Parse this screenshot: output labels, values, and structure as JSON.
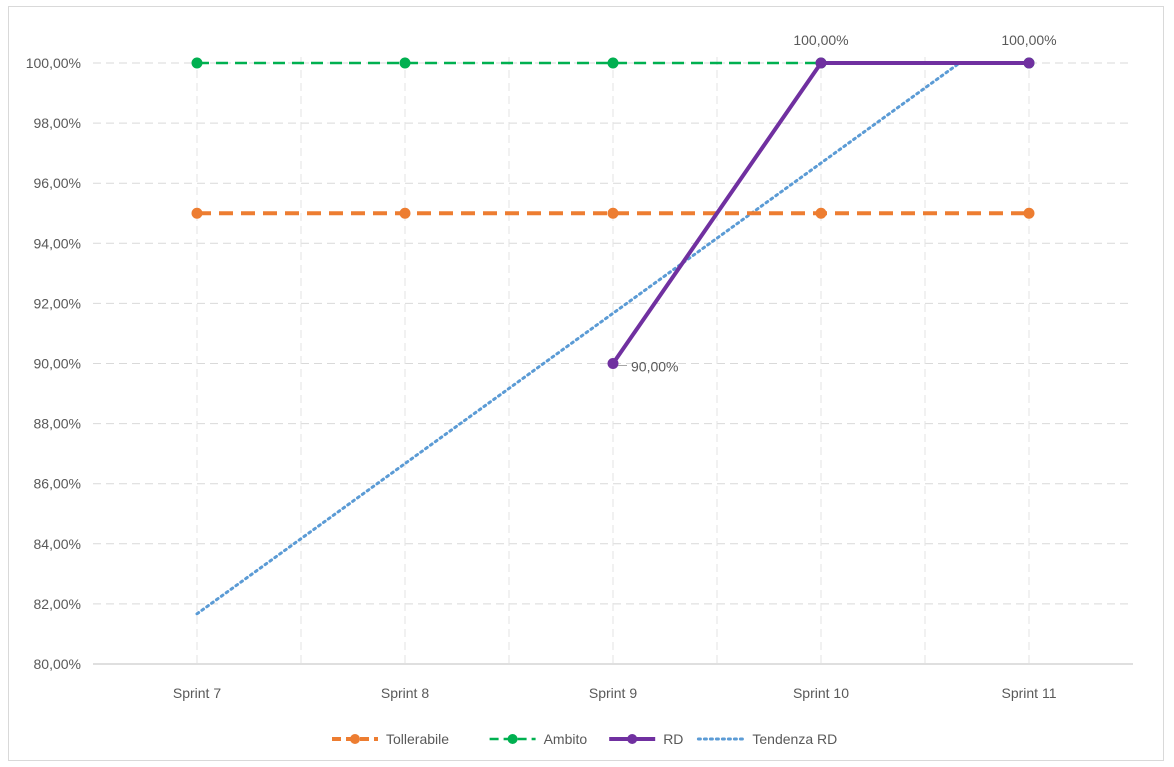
{
  "chart_data": {
    "type": "line",
    "categories": [
      "Sprint 7",
      "Sprint 8",
      "Sprint 9",
      "Sprint 10",
      "Sprint 11"
    ],
    "series": [
      {
        "name": "Tollerabile",
        "values": [
          95,
          95,
          95,
          95,
          95
        ],
        "color": "#ed7d31",
        "style": "dashed-thick",
        "marker": "circle"
      },
      {
        "name": "Ambito",
        "values": [
          100,
          100,
          100,
          100,
          100
        ],
        "color": "#00b050",
        "style": "dashed",
        "marker": "circle"
      },
      {
        "name": "RD",
        "values": [
          null,
          null,
          90,
          100,
          100
        ],
        "color": "#7030a0",
        "style": "solid",
        "marker": "circle"
      },
      {
        "name": "Tendenza RD",
        "values": [
          81.67,
          86.67,
          91.67,
          96.67,
          101.67
        ],
        "color": "#5b9bd5",
        "style": "dotted",
        "marker": "none"
      }
    ],
    "data_labels": [
      {
        "series": "RD",
        "category": "Sprint 9",
        "text": "90,00%"
      },
      {
        "series": "RD",
        "category": "Sprint 10",
        "text": "100,00%"
      },
      {
        "series": "RD",
        "category": "Sprint 11",
        "text": "100,00%"
      }
    ],
    "title": "",
    "xlabel": "",
    "ylabel": "",
    "ylim": [
      80,
      100
    ],
    "ytick_step": 2,
    "ytick_labels": [
      "80,00%",
      "82,00%",
      "84,00%",
      "86,00%",
      "88,00%",
      "90,00%",
      "92,00%",
      "94,00%",
      "96,00%",
      "98,00%",
      "100,00%"
    ],
    "grid": true,
    "legend_position": "bottom"
  }
}
